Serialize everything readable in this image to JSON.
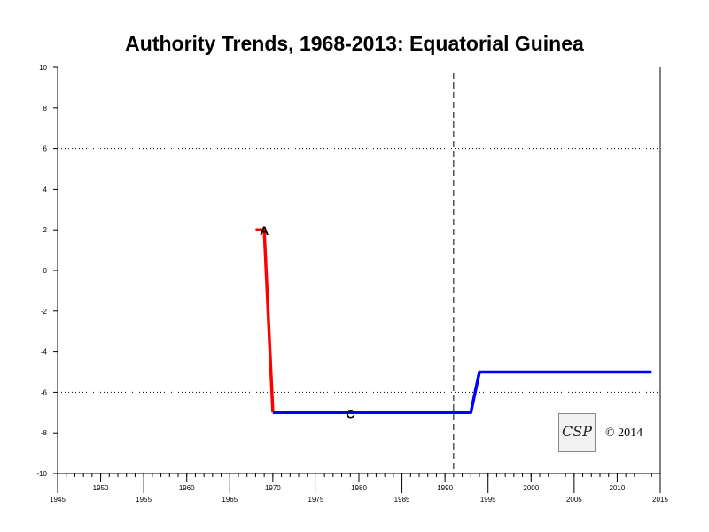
{
  "chart_data": {
    "type": "line",
    "title": "Authority Trends, 1968-2013: Equatorial Guinea",
    "xlabel": "",
    "ylabel": "",
    "xlim": [
      1945,
      2015
    ],
    "ylim": [
      -10,
      10
    ],
    "x_major_ticks": [
      1945,
      1955,
      1965,
      1975,
      1985,
      1995,
      2005,
      2015
    ],
    "x_minor_labeled_ticks": [
      1950,
      1960,
      1970,
      1980,
      1990,
      2000,
      2010
    ],
    "y_ticks": [
      10,
      8,
      6,
      4,
      2,
      0,
      -2,
      -4,
      -6,
      -8,
      -10
    ],
    "reference_lines": {
      "horizontal_dotted": [
        6,
        -6
      ],
      "vertical_dashed": 1991
    },
    "series": [
      {
        "color": "#ff0000",
        "points": [
          [
            1968,
            2
          ],
          [
            1969,
            2
          ],
          [
            1970,
            -7
          ]
        ]
      },
      {
        "color": "#0000ff",
        "points": [
          [
            1970,
            -7
          ],
          [
            1993,
            -7
          ],
          [
            1994,
            -5
          ],
          [
            2014,
            -5
          ]
        ]
      }
    ],
    "annotations": [
      {
        "text": "A",
        "x": 1969,
        "y": 2
      },
      {
        "text": "C",
        "x": 1979,
        "y": -7
      }
    ]
  },
  "logo": {
    "text": "CSP"
  },
  "copyright": "© 2014"
}
